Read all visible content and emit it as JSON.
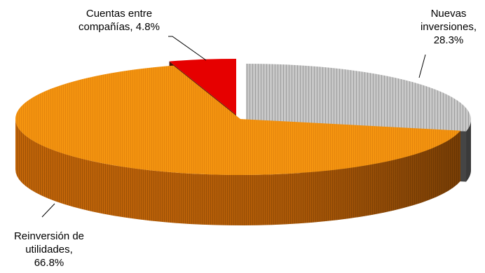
{
  "chart_data": {
    "type": "pie",
    "style": "3d-exploded",
    "title": "",
    "slices": [
      {
        "label": "Nuevas inversiones",
        "value": 28.3,
        "display": "28.3%",
        "color": "#c0c0c0",
        "side_color": "#3a3a3a"
      },
      {
        "label": "Reinversión de utilidades",
        "value": 66.8,
        "display": "66.8%",
        "color": "#f5940f",
        "side_color": "#c26508"
      },
      {
        "label": "Cuentas entre compañías",
        "value": 4.8,
        "display": "4.8%",
        "color": "#e60000",
        "side_color": "#4a1208"
      }
    ],
    "data_labels": [
      {
        "lines": [
          "Nuevas",
          "inversiones,",
          "28.3%"
        ]
      },
      {
        "lines": [
          "Reinversión de",
          "utilidades,",
          "66.8%"
        ]
      },
      {
        "lines": [
          "Cuentas entre",
          "compañías, 4.8%"
        ]
      }
    ]
  }
}
